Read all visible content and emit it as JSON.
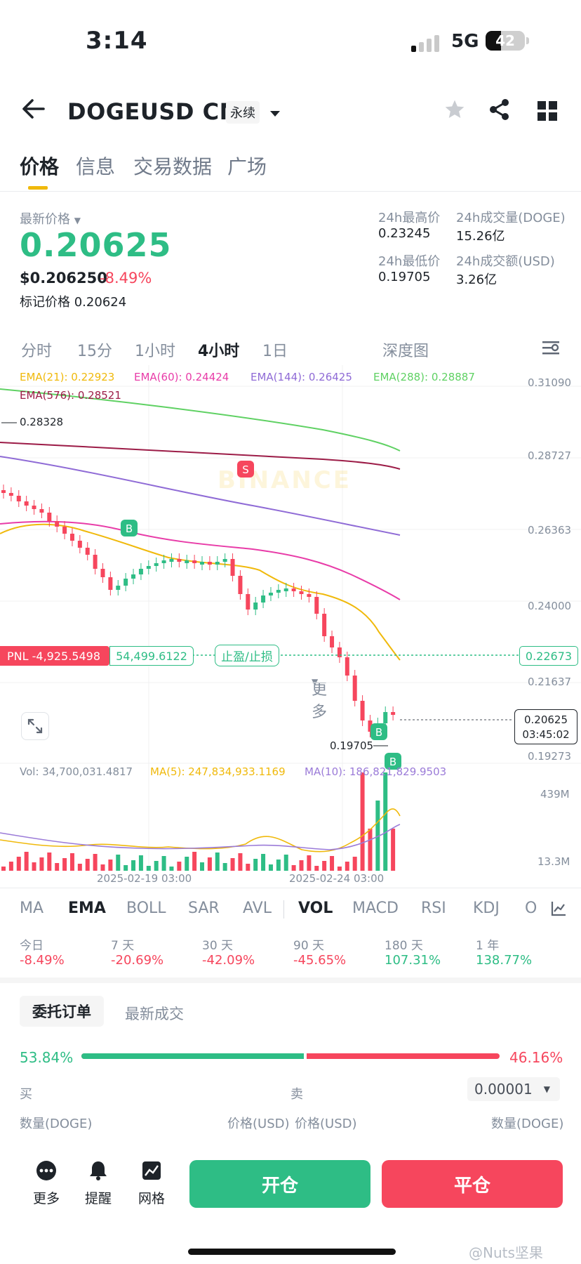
{
  "status_bar": {
    "time": "3:14",
    "network": "5G",
    "battery": "42"
  },
  "header": {
    "title": "DOGEUSD CM",
    "badge": "永续"
  },
  "tabs": [
    {
      "label": "价格"
    },
    {
      "label": "信息"
    },
    {
      "label": "交易数据"
    },
    {
      "label": "广场"
    }
  ],
  "ticker": {
    "last_label": "最新价格",
    "last_price": "0.20625",
    "usd_price": "$0.206250",
    "change": "-8.49%",
    "mark_label": "标记价格",
    "mark_price": "0.20624",
    "high_label": "24h最高价",
    "high": "0.23245",
    "low_label": "24h最低价",
    "low": "0.19705",
    "vol_doge_label": "24h成交量(DOGE)",
    "vol_doge": "15.26亿",
    "vol_usd_label": "24h成交额(USD)",
    "vol_usd": "3.26亿"
  },
  "intervals": [
    "分时",
    "15分",
    "1小时",
    "4小时",
    "1日",
    "更多",
    "深度图"
  ],
  "ema_legend": {
    "ema21": "EMA(21): 0.22923",
    "ema60": "EMA(60): 0.24424",
    "ema144": "EMA(144): 0.26425",
    "ema288": "EMA(288): 0.28887",
    "ema576": "EMA(576): 0.28521"
  },
  "y_axis": [
    "0.31090",
    "0.28727",
    "0.26363",
    "0.24000",
    "0.22673",
    "0.21637",
    "0.19273"
  ],
  "chart_annotations": {
    "high_mark": "0.28328",
    "low_mark": "0.19705",
    "pnl": "PNL -4,925.5498",
    "pnl_qty": "54,499.6122",
    "tp_sl": "止盈/止损",
    "last_price_tag": "0.20625",
    "countdown": "03:45:02",
    "buy_marker": "B",
    "sell_marker": "S",
    "watermark": "BINANCE"
  },
  "volume": {
    "vol": "Vol: 34,700,031.4817",
    "ma5": "MA(5): 247,834,933.1169",
    "ma10": "MA(10): 186,821,829.9503",
    "axis_top": "439M",
    "axis_bottom": "13.3M"
  },
  "x_axis": [
    "2025-02-19 03:00",
    "2025-02-24 03:00"
  ],
  "indicator_tabs": [
    "MA",
    "EMA",
    "BOLL",
    "SAR",
    "AVL",
    "VOL",
    "MACD",
    "RSI",
    "KDJ",
    "O"
  ],
  "performance": [
    {
      "label": "今日",
      "value": "-8.49%"
    },
    {
      "label": "7 天",
      "value": "-20.69%"
    },
    {
      "label": "30 天",
      "value": "-42.09%"
    },
    {
      "label": "90 天",
      "value": "-45.65%"
    },
    {
      "label": "180 天",
      "value": "107.31%"
    },
    {
      "label": "1 年",
      "value": "138.77%"
    }
  ],
  "orderbook": {
    "tab_orders": "委托订单",
    "tab_trades": "最新成交",
    "buy_pct": "53.84%",
    "sell_pct": "46.16%",
    "buy_ratio": 0.5384,
    "buy_label": "买",
    "sell_label": "卖",
    "precision": "0.00001",
    "col_qty_left": "数量(DOGE)",
    "col_price_left": "价格(USD)",
    "col_price_right": "价格(USD)",
    "col_qty_right": "数量(DOGE)"
  },
  "footer": {
    "more": "更多",
    "alert": "提醒",
    "grid": "网格",
    "open": "开仓",
    "close": "平仓"
  },
  "colors": {
    "up": "#2ebd85",
    "down": "#f6465d",
    "accent": "#f0b90b"
  },
  "watermark": "@Nuts坚果"
}
